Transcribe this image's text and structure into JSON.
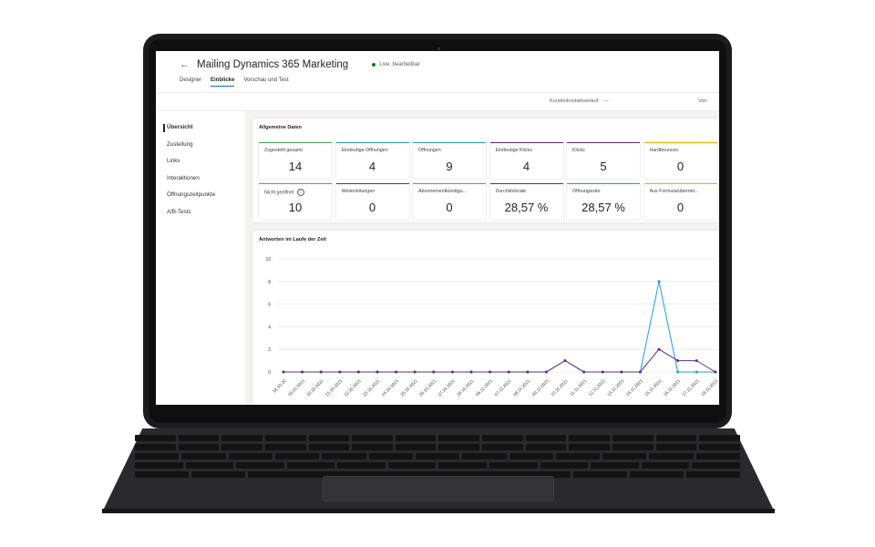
{
  "app": {
    "title": "Mailing Dynamics 365 Marketing",
    "status": "Live, bearbeitbar",
    "back_icon": "back-arrow-icon"
  },
  "tabs": [
    {
      "label": "Designer",
      "active": false
    },
    {
      "label": "Einblicke",
      "active": true
    },
    {
      "label": "Vorschau und Test",
      "active": false
    }
  ],
  "toolbar": {
    "kundenkontakt_label": "Kundenkontaktverlauf:",
    "kundenkontakt_value": "---",
    "von_label": "Von:"
  },
  "sidebar": {
    "items": [
      {
        "label": "Übersicht",
        "active": true
      },
      {
        "label": "Zustellung",
        "active": false
      },
      {
        "label": "Links",
        "active": false
      },
      {
        "label": "Interaktionen",
        "active": false
      },
      {
        "label": "Öffnungszeitpunkte",
        "active": false
      },
      {
        "label": "A/B-Tests",
        "active": false
      }
    ]
  },
  "overview": {
    "title": "Allgemeine Daten",
    "cards_row1": [
      {
        "label": "Zugestellt gesamt",
        "value": "14",
        "color": "#4aa564"
      },
      {
        "label": "Eindeutige Öffnungen",
        "value": "4",
        "color": "#2aa0a4"
      },
      {
        "label": "Öffnungen",
        "value": "9",
        "color": "#2aa0a4"
      },
      {
        "label": "Eindeutige Klicks",
        "value": "4",
        "color": "#5c2e91"
      },
      {
        "label": "Klicks",
        "value": "5",
        "color": "#5c2e91"
      },
      {
        "label": "Hardbounces",
        "value": "0",
        "color": "#e3b505"
      }
    ],
    "cards_row2": [
      {
        "label": "Nicht geöffnet",
        "value": "10",
        "color": "#8a8886",
        "info": true
      },
      {
        "label": "Weiterleitungen",
        "value": "0",
        "color": "#5c2e91"
      },
      {
        "label": "Abonnementkündigu...",
        "value": "0",
        "color": "#8a8886"
      },
      {
        "label": "Durchklickrate",
        "value": "28,57 %",
        "color": "#5c2e91"
      },
      {
        "label": "Öffnungsrate",
        "value": "28,57 %",
        "color": "#2aa0a4"
      },
      {
        "label": "Aus Formularübermit...",
        "value": "0",
        "color": "#e3b505"
      }
    ]
  },
  "chart_data": {
    "type": "line",
    "title": "Antworten im Laufe der Zeit",
    "x": [
      "18.10.20",
      "19.10.2021",
      "20.10.2021",
      "21.10.2021",
      "22.10.2021",
      "23.10.2021",
      "24.10.2021",
      "25.10.2021",
      "26.10.2021",
      "27.10.2021",
      "28.10.2021",
      "06.11.2021",
      "07.11.2021",
      "08.11.2021",
      "09.11.2021",
      "10.11.2021",
      "11.11.2021",
      "12.11.2021",
      "13.11.2021",
      "14.11.2021",
      "15.11.2021",
      "16.11.2021",
      "17.11.2021",
      "18.11.2021"
    ],
    "ylim": [
      0,
      10
    ],
    "yticks": [
      0,
      2,
      4,
      6,
      8,
      10
    ],
    "grid": true,
    "series": [
      {
        "color": "#1e9be8",
        "values": [
          0,
          0,
          0,
          0,
          0,
          0,
          0,
          0,
          0,
          0,
          0,
          0,
          0,
          0,
          0,
          1,
          0,
          0,
          0,
          0,
          8,
          0,
          0,
          0
        ]
      },
      {
        "color": "#5c2e91",
        "values": [
          0,
          0,
          0,
          0,
          0,
          0,
          0,
          0,
          0,
          0,
          0,
          0,
          0,
          0,
          0,
          1,
          0,
          0,
          0,
          0,
          2,
          1,
          1,
          0
        ]
      }
    ]
  }
}
